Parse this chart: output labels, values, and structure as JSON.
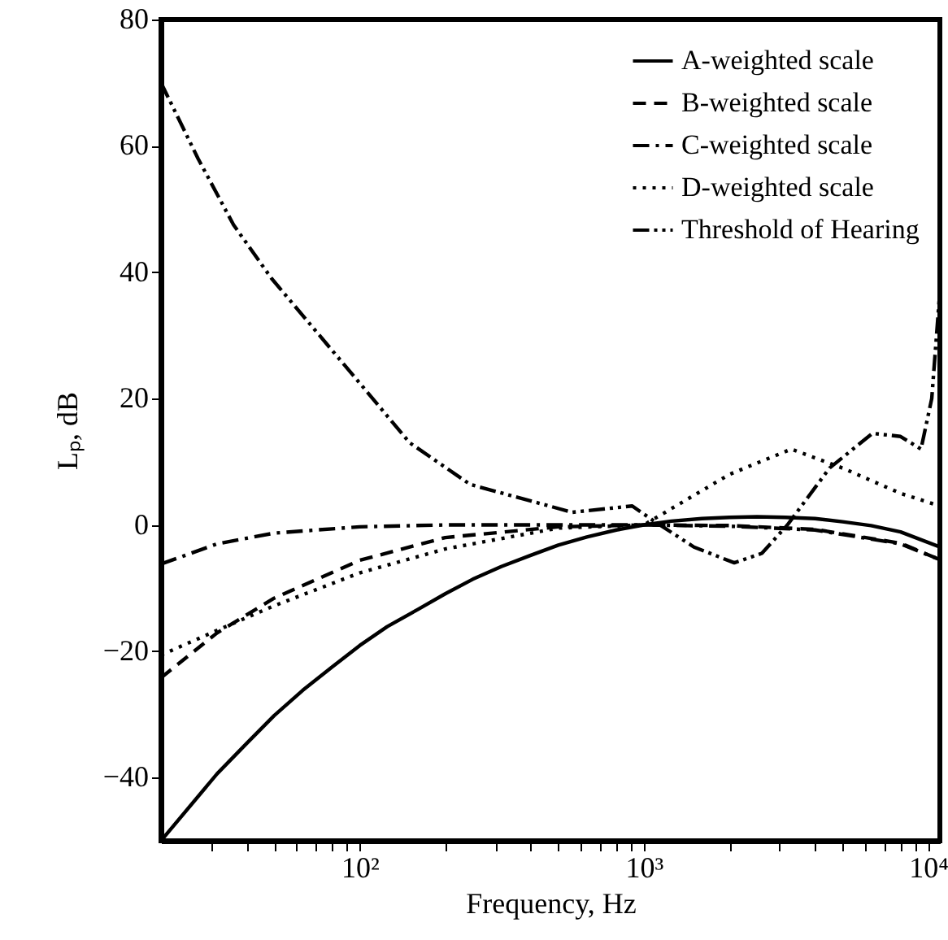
{
  "chart_data": {
    "type": "line",
    "xlabel": "Frequency, Hz",
    "ylabel": "Lₚ, dB",
    "log": "x",
    "xlim": [
      20,
      11000
    ],
    "ylim": [
      -50,
      80
    ],
    "xticks": [
      {
        "value": 30,
        "label": null
      },
      {
        "value": 40,
        "label": null
      },
      {
        "value": 50,
        "label": null
      },
      {
        "value": 60,
        "label": null
      },
      {
        "value": 70,
        "label": null
      },
      {
        "value": 80,
        "label": null
      },
      {
        "value": 90,
        "label": null
      },
      {
        "value": 100,
        "label": "10²"
      },
      {
        "value": 200,
        "label": null
      },
      {
        "value": 300,
        "label": null
      },
      {
        "value": 400,
        "label": null
      },
      {
        "value": 500,
        "label": null
      },
      {
        "value": 600,
        "label": null
      },
      {
        "value": 700,
        "label": null
      },
      {
        "value": 800,
        "label": null
      },
      {
        "value": 900,
        "label": null
      },
      {
        "value": 1000,
        "label": "10³"
      },
      {
        "value": 2000,
        "label": null
      },
      {
        "value": 3000,
        "label": null
      },
      {
        "value": 4000,
        "label": null
      },
      {
        "value": 5000,
        "label": null
      },
      {
        "value": 6000,
        "label": null
      },
      {
        "value": 7000,
        "label": null
      },
      {
        "value": 8000,
        "label": null
      },
      {
        "value": 9000,
        "label": null
      },
      {
        "value": 10000,
        "label": "10⁴"
      }
    ],
    "yticks": [
      {
        "value": -40,
        "label": "−40"
      },
      {
        "value": -20,
        "label": "−20"
      },
      0,
      20,
      40,
      60,
      80
    ],
    "grid": false,
    "legend": "top right",
    "series": [
      {
        "name": "A-weighted scale",
        "color": "#000000",
        "line_style": "solid",
        "x": [
          20,
          31.5,
          40,
          50,
          63,
          80,
          100,
          125,
          160,
          200,
          250,
          315,
          400,
          500,
          630,
          800,
          1000,
          1250,
          1600,
          2000,
          2500,
          3150,
          4000,
          5000,
          6300,
          8000,
          11000
        ],
        "values": [
          -50,
          -39.4,
          -34.6,
          -30.2,
          -26.2,
          -22.5,
          -19.1,
          -16.1,
          -13.4,
          -10.9,
          -8.6,
          -6.6,
          -4.8,
          -3.2,
          -1.9,
          -0.8,
          0,
          0.6,
          1.0,
          1.2,
          1.3,
          1.2,
          1.0,
          0.5,
          -0.1,
          -1.1,
          -3.5
        ]
      },
      {
        "name": "B-weighted scale",
        "color": "#000000",
        "line_style": "dashed",
        "x": [
          20,
          31.5,
          50,
          100,
          200,
          500,
          1000,
          2000,
          4000,
          8000,
          11000
        ],
        "values": [
          -24.2,
          -17.1,
          -11.6,
          -5.6,
          -2,
          -0.3,
          0,
          -0.1,
          -0.7,
          -2.9,
          -5.5
        ]
      },
      {
        "name": "C-weighted scale",
        "color": "#000000",
        "line_style": "dashdot",
        "x": [
          20,
          31.5,
          50,
          100,
          200,
          500,
          1000,
          2000,
          4000,
          8000,
          11000
        ],
        "values": [
          -6.2,
          -3,
          -1.3,
          -0.3,
          0,
          0,
          0,
          -0.2,
          -0.8,
          -3,
          -5.5
        ]
      },
      {
        "name": "D-weighted scale",
        "color": "#000000",
        "line_style": "dotted",
        "x": [
          20,
          31.5,
          50,
          100,
          200,
          500,
          1000,
          2000,
          3300,
          5000,
          8000,
          11000
        ],
        "values": [
          -20.6,
          -16.7,
          -12.8,
          -7.6,
          -3.8,
          -0.5,
          0,
          8,
          12,
          9,
          5,
          3
        ]
      },
      {
        "name": "Threshold of Hearing",
        "color": "#000000",
        "line_style": "dashdotdot",
        "x": [
          20,
          27,
          36,
          49,
          102,
          150,
          245,
          560,
          910,
          1070,
          1500,
          2080,
          2600,
          3200,
          4500,
          6370,
          8000,
          9440,
          10300,
          11000
        ],
        "values": [
          70,
          58,
          47.5,
          39,
          22,
          13,
          6.4,
          2,
          3,
          0.8,
          -3.5,
          -6,
          -4.5,
          0,
          9,
          14.5,
          14,
          12,
          20,
          37
        ]
      }
    ]
  }
}
